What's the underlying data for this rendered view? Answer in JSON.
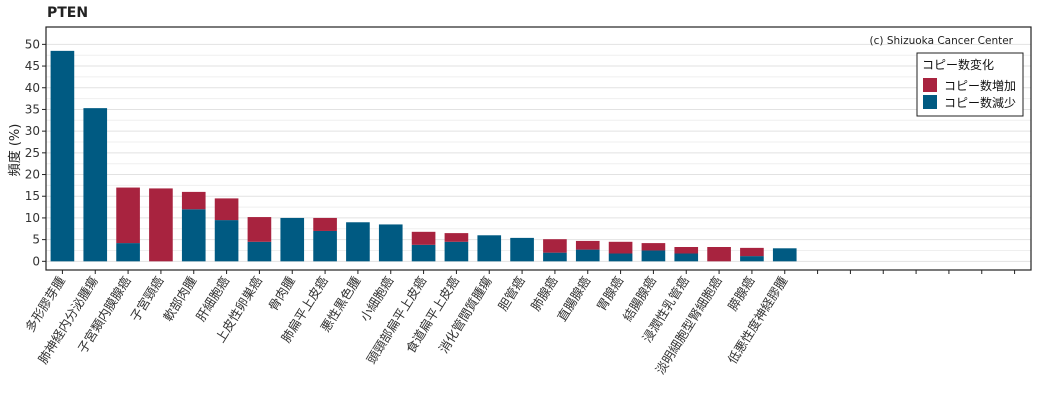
{
  "chart_data": {
    "type": "bar",
    "stacked": true,
    "title": "PTEN",
    "ylabel": "頻度 (%)",
    "xlabel": "",
    "ylim": [
      -2,
      54
    ],
    "yticks": [
      0,
      5,
      10,
      15,
      20,
      25,
      30,
      35,
      40,
      45,
      50
    ],
    "grid": true,
    "legend_title": "コピー数変化",
    "legend_position": "top-right",
    "annotation": "(c) Shizuoka Cancer Center",
    "empty_slots": 7,
    "categories": [
      "多形膠芽腫",
      "肺神経内分泌腫瘍",
      "子宮類内膜腺癌",
      "子宮頸癌",
      "軟部肉腫",
      "肝細胞癌",
      "上皮性卵巣癌",
      "骨肉腫",
      "肺扁平上皮癌",
      "悪性黒色腫",
      "小細胞癌",
      "頭頸部扁平上皮癌",
      "食道扁平上皮癌",
      "消化管間質腫瘍",
      "胆管癌",
      "肺腺癌",
      "直腸腺癌",
      "胃腺癌",
      "結腸腺癌",
      "浸潤性乳管癌",
      "淡明細胞型腎細胞癌",
      "膵腺癌",
      "低悪性度神経膠腫"
    ],
    "series": [
      {
        "name": "コピー数減少",
        "color": "#005a82",
        "values": [
          48.5,
          35.3,
          4.2,
          0,
          12.0,
          9.5,
          4.5,
          10.0,
          7.0,
          9.0,
          8.5,
          3.8,
          4.5,
          6.0,
          5.4,
          2.0,
          2.7,
          1.8,
          2.5,
          1.8,
          0,
          1.2,
          3.0
        ]
      },
      {
        "name": "コピー数増加",
        "color": "#a8233f",
        "values": [
          0,
          0,
          12.8,
          16.8,
          4.0,
          5.0,
          5.7,
          0,
          3.0,
          0,
          0,
          3.0,
          2.0,
          0,
          0,
          3.1,
          2.0,
          2.7,
          1.7,
          1.5,
          3.3,
          1.9,
          0
        ]
      }
    ]
  }
}
